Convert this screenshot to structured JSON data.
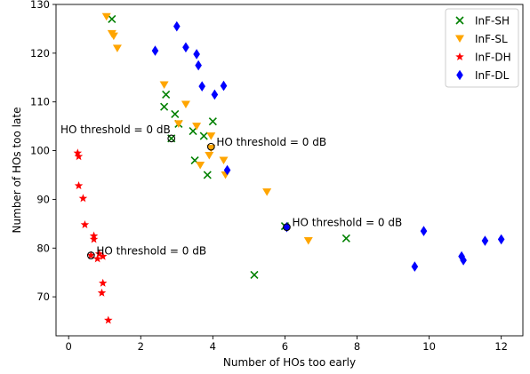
{
  "chart_data": {
    "type": "scatter",
    "xlabel": "Number of HOs too early",
    "ylabel": "Number of HOs too late",
    "xlim": [
      -0.35,
      12.6
    ],
    "ylim": [
      62,
      130
    ],
    "x_ticks": [
      0,
      2,
      4,
      6,
      8,
      10,
      12
    ],
    "y_ticks": [
      70,
      80,
      90,
      100,
      110,
      120,
      130
    ],
    "grid": false,
    "legend_position": "top-right",
    "series": [
      {
        "name": "InF-SH",
        "color": "#008000",
        "marker": "x",
        "points": [
          [
            1.2,
            127
          ],
          [
            2.7,
            111.5
          ],
          [
            2.65,
            109
          ],
          [
            2.95,
            107.5
          ],
          [
            3.05,
            105.5
          ],
          [
            2.85,
            102.5
          ],
          [
            3.45,
            104
          ],
          [
            3.75,
            103
          ],
          [
            4.0,
            106
          ],
          [
            3.5,
            98
          ],
          [
            3.85,
            95
          ],
          [
            5.15,
            74.5
          ],
          [
            6.0,
            84.5
          ],
          [
            7.7,
            82
          ]
        ]
      },
      {
        "name": "InF-SL",
        "color": "#ffa500",
        "marker": "v",
        "points": [
          [
            1.05,
            127.5
          ],
          [
            1.2,
            124
          ],
          [
            1.25,
            123.5
          ],
          [
            1.35,
            121
          ],
          [
            2.65,
            113.5
          ],
          [
            3.25,
            109.5
          ],
          [
            3.05,
            105.5
          ],
          [
            3.55,
            105
          ],
          [
            3.95,
            103
          ],
          [
            3.95,
            100.5
          ],
          [
            3.9,
            99
          ],
          [
            3.65,
            97
          ],
          [
            4.3,
            98
          ],
          [
            4.35,
            95
          ],
          [
            5.5,
            91.5
          ],
          [
            6.65,
            81.5
          ]
        ]
      },
      {
        "name": "InF-DH",
        "color": "#ff0000",
        "marker": "*",
        "points": [
          [
            0.25,
            99.5
          ],
          [
            0.28,
            98.8
          ],
          [
            0.28,
            92.8
          ],
          [
            0.4,
            90.2
          ],
          [
            0.45,
            84.8
          ],
          [
            0.7,
            82.5
          ],
          [
            0.7,
            81.8
          ],
          [
            0.62,
            78.5
          ],
          [
            0.85,
            78.8
          ],
          [
            0.8,
            77.8
          ],
          [
            0.95,
            78.3
          ],
          [
            0.95,
            72.8
          ],
          [
            0.92,
            70.8
          ],
          [
            1.1,
            65.2
          ]
        ]
      },
      {
        "name": "InF-DL",
        "color": "#0000ff",
        "marker": "d",
        "points": [
          [
            2.4,
            120.5
          ],
          [
            3.0,
            125.5
          ],
          [
            3.25,
            121.2
          ],
          [
            3.55,
            119.8
          ],
          [
            3.6,
            117.5
          ],
          [
            3.7,
            113.2
          ],
          [
            4.05,
            111.5
          ],
          [
            4.3,
            113.3
          ],
          [
            4.4,
            96
          ],
          [
            6.05,
            84.3
          ],
          [
            9.6,
            76.2
          ],
          [
            9.85,
            83.5
          ],
          [
            10.9,
            78.3
          ],
          [
            10.95,
            77.5
          ],
          [
            11.55,
            81.5
          ],
          [
            12.0,
            81.8
          ]
        ]
      }
    ],
    "highlighted_points": [
      [
        2.85,
        102.5
      ],
      [
        3.95,
        100.8
      ],
      [
        0.62,
        78.5
      ],
      [
        6.05,
        84.3
      ]
    ],
    "annotations": [
      {
        "text": "HO threshold = 0 dB",
        "x": 2.85,
        "y": 102.5,
        "anchor": "end"
      },
      {
        "text": "HO threshold = 0 dB",
        "x": 3.95,
        "y": 100.8,
        "anchor": "start"
      },
      {
        "text": "HO threshold = 0 dB",
        "x": 0.62,
        "y": 78.5,
        "anchor": "start"
      },
      {
        "text": "HO threshold = 0 dB",
        "x": 6.05,
        "y": 84.3,
        "anchor": "start"
      }
    ]
  }
}
